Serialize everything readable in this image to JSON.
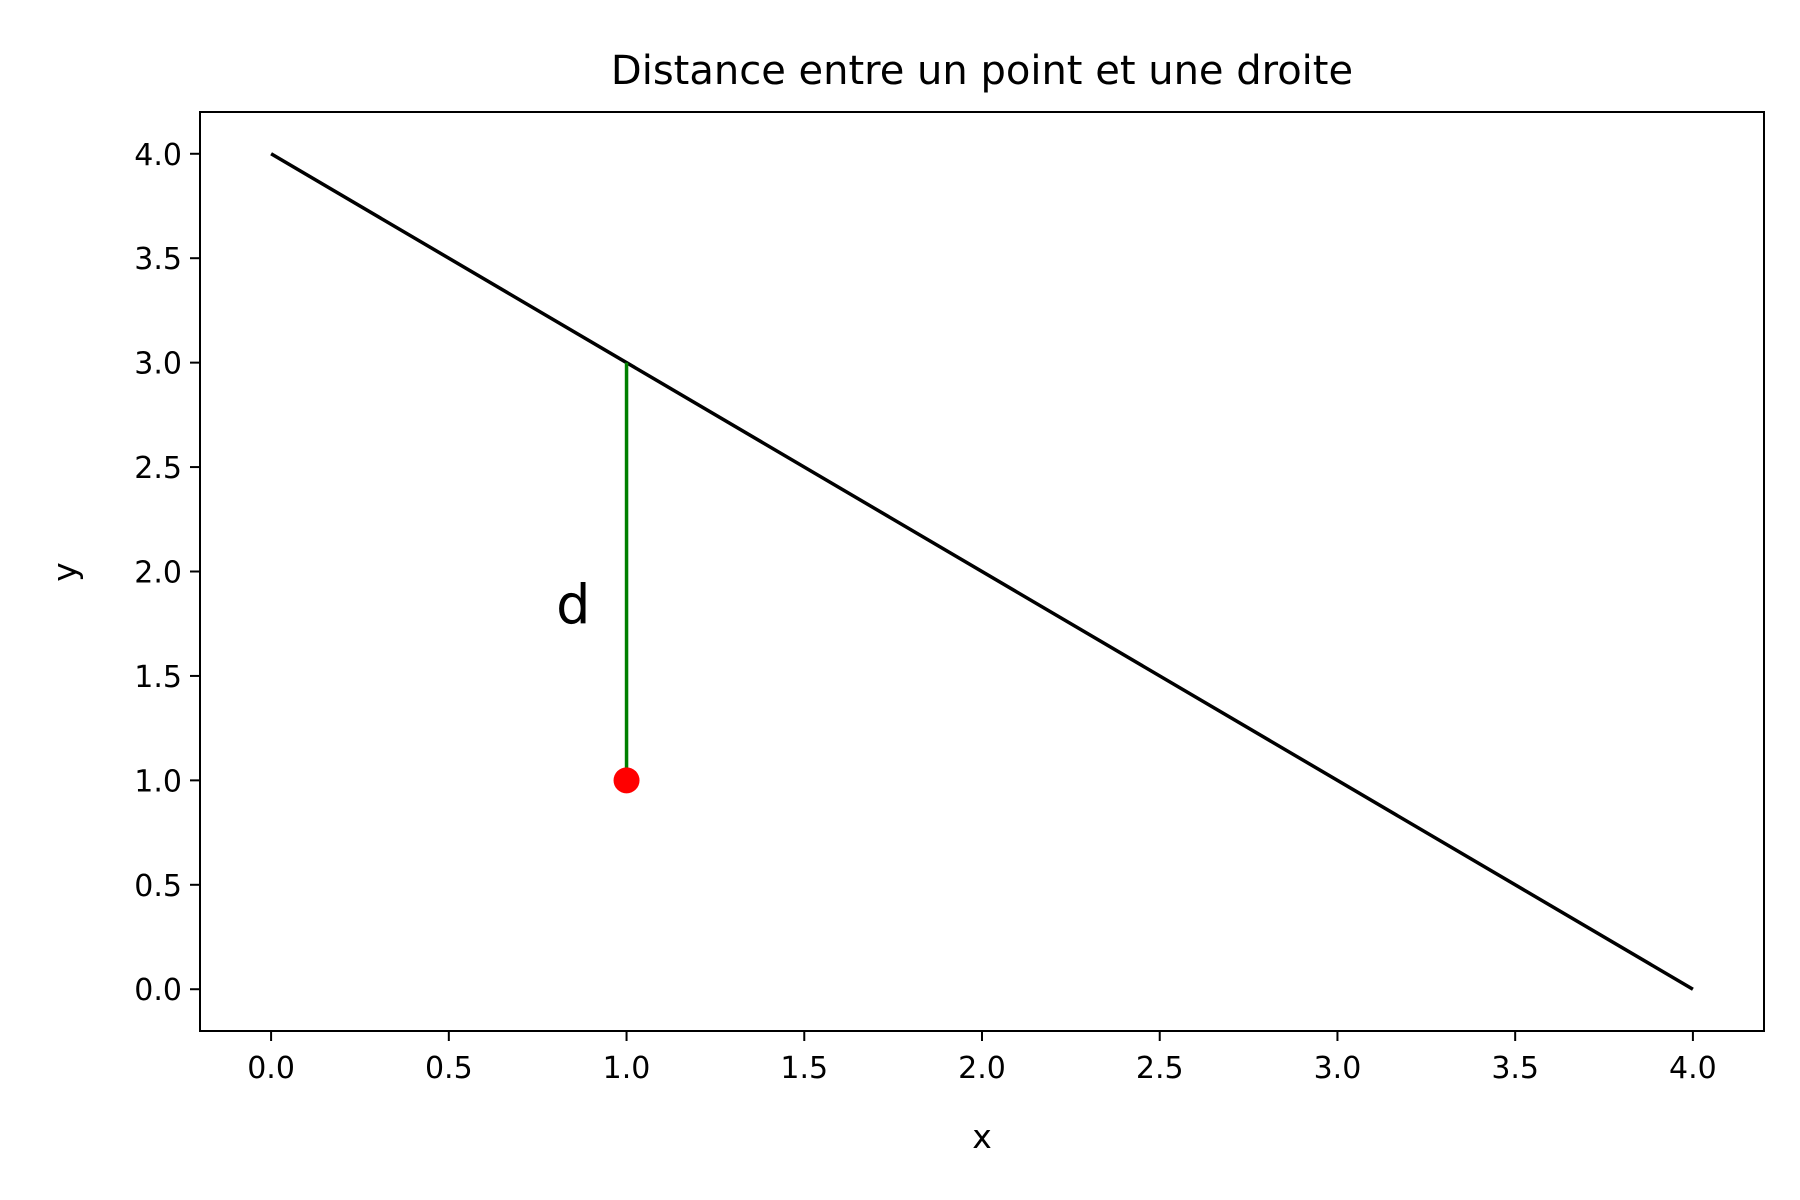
{
  "chart_data": {
    "type": "line",
    "title": "Distance entre un point et une droite",
    "xlabel": "x",
    "ylabel": "y",
    "xlim": [
      -0.2,
      4.2
    ],
    "ylim": [
      -0.2,
      4.2
    ],
    "xticks": [
      0.0,
      0.5,
      1.0,
      1.5,
      2.0,
      2.5,
      3.0,
      3.5,
      4.0
    ],
    "yticks": [
      0.0,
      0.5,
      1.0,
      1.5,
      2.0,
      2.5,
      3.0,
      3.5,
      4.0
    ],
    "xtick_labels": [
      "0.0",
      "0.5",
      "1.0",
      "1.5",
      "2.0",
      "2.5",
      "3.0",
      "3.5",
      "4.0"
    ],
    "ytick_labels": [
      "0.0",
      "0.5",
      "1.0",
      "1.5",
      "2.0",
      "2.5",
      "3.0",
      "3.5",
      "4.0"
    ],
    "grid": false,
    "series": [
      {
        "kind": "line",
        "color": "#000000",
        "x": [
          0,
          4
        ],
        "y": [
          4,
          0
        ]
      },
      {
        "kind": "segment",
        "color": "#008000",
        "x": [
          1,
          1
        ],
        "y": [
          1,
          3
        ]
      },
      {
        "kind": "point",
        "color": "#ff0000",
        "x": [
          1
        ],
        "y": [
          1
        ]
      }
    ],
    "annotations": [
      {
        "text": "d",
        "x": 0.85,
        "y": 1.75
      }
    ]
  }
}
